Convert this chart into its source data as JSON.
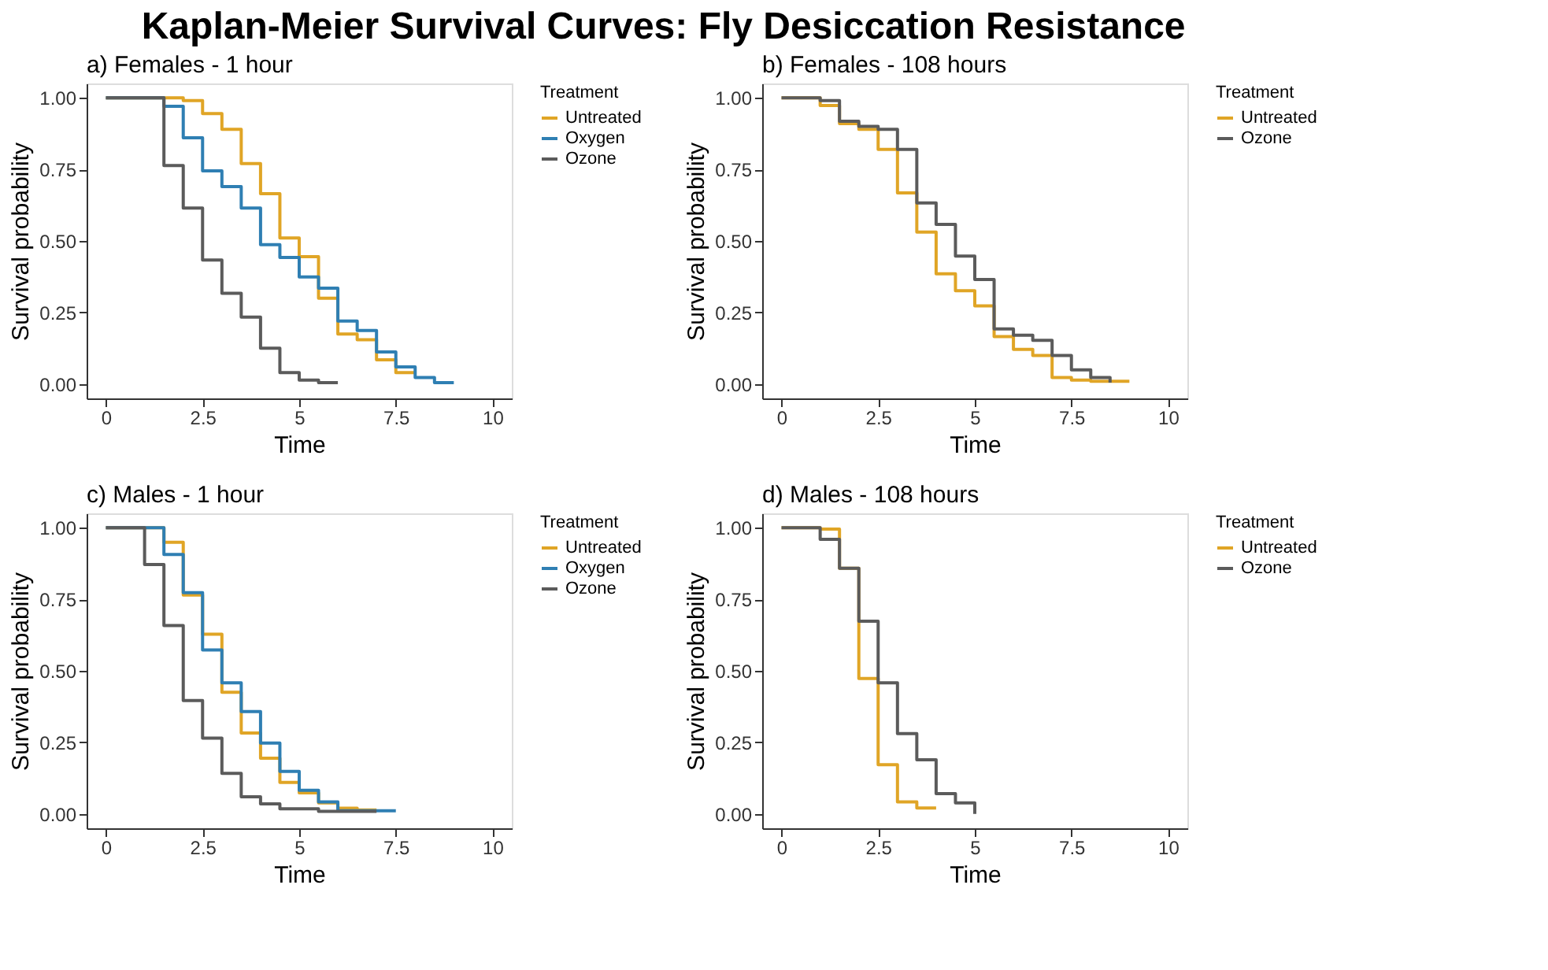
{
  "chart_data": [
    {
      "type": "step",
      "title": "Kaplan-Meier Survival Curves: Fly Desiccation Resistance",
      "subtitle": "a)  Females - 1 hour",
      "xlabel": "Time",
      "ylabel": "Survival probability",
      "legend_title": "Treatment",
      "legend": "right",
      "grid": false,
      "xlim": [
        -0.5,
        10.5
      ],
      "xticks": [
        0,
        2.5,
        5,
        7.5,
        10
      ],
      "ylim": [
        -0.05,
        1.05
      ],
      "yticks": [
        {
          "value": 0,
          "label": "0.00"
        },
        {
          "value": 0.25,
          "label": "0.25"
        },
        {
          "value": 0.5,
          "label": "0.50"
        },
        {
          "value": 0.75,
          "label": "0.75"
        },
        {
          "value": 1,
          "label": "1.00"
        }
      ],
      "series": [
        {
          "name": "Untreated",
          "color": "#e0a526",
          "x": [
            0,
            2,
            2.5,
            3,
            3.5,
            4,
            4.5,
            5,
            5.5,
            6,
            6.5,
            7,
            7.5,
            8
          ],
          "values": [
            1,
            0.99,
            0.945,
            0.89,
            0.77,
            0.665,
            0.51,
            0.445,
            0.3,
            0.175,
            0.155,
            0.085,
            0.04,
            0.04
          ]
        },
        {
          "name": "Oxygen",
          "color": "#2f7fb3",
          "x": [
            0,
            1.5,
            2,
            2.5,
            3,
            3.5,
            4,
            4.5,
            5,
            5.5,
            6,
            6.5,
            7,
            7.5,
            8,
            8.5,
            9
          ],
          "values": [
            1,
            0.97,
            0.86,
            0.745,
            0.69,
            0.615,
            0.487,
            0.442,
            0.374,
            0.335,
            0.22,
            0.187,
            0.112,
            0.06,
            0.023,
            0.005,
            0.005
          ]
        },
        {
          "name": "Ozone",
          "color": "#5b5b5b",
          "x": [
            0,
            1.5,
            2,
            2.5,
            3,
            3.5,
            4,
            4.5,
            5,
            5.5,
            6
          ],
          "values": [
            1,
            0.763,
            0.615,
            0.433,
            0.317,
            0.234,
            0.125,
            0.04,
            0.014,
            0.005,
            0.005
          ]
        }
      ]
    },
    {
      "type": "step",
      "subtitle": "b)  Females - 108 hours",
      "xlabel": "Time",
      "ylabel": "Survival probability",
      "legend_title": "Treatment",
      "legend": "right",
      "grid": false,
      "xlim": [
        -0.5,
        10.5
      ],
      "xticks": [
        0,
        2.5,
        5,
        7.5,
        10
      ],
      "ylim": [
        -0.05,
        1.05
      ],
      "yticks": [
        {
          "value": 0,
          "label": "0.00"
        },
        {
          "value": 0.25,
          "label": "0.25"
        },
        {
          "value": 0.5,
          "label": "0.50"
        },
        {
          "value": 0.75,
          "label": "0.75"
        },
        {
          "value": 1,
          "label": "1.00"
        }
      ],
      "series": [
        {
          "name": "Untreated",
          "color": "#e0a526",
          "x": [
            0,
            1,
            1.5,
            2,
            2.5,
            3,
            3.5,
            4,
            4.5,
            5,
            5.5,
            6,
            6.5,
            7,
            7.5,
            8,
            9
          ],
          "values": [
            1,
            0.973,
            0.91,
            0.89,
            0.82,
            0.668,
            0.531,
            0.385,
            0.326,
            0.273,
            0.166,
            0.121,
            0.1,
            0.023,
            0.014,
            0.01,
            0.01
          ]
        },
        {
          "name": "Ozone",
          "color": "#5b5b5b",
          "x": [
            0,
            1,
            1.5,
            2,
            2.5,
            3,
            3.5,
            4,
            4.5,
            5,
            5.5,
            6,
            6.5,
            7,
            7.5,
            8,
            8.5
          ],
          "values": [
            1,
            0.99,
            0.918,
            0.9,
            0.89,
            0.82,
            0.633,
            0.558,
            0.447,
            0.365,
            0.193,
            0.171,
            0.153,
            0.1,
            0.05,
            0.023,
            0.005
          ]
        }
      ]
    },
    {
      "type": "step",
      "subtitle": "c)  Males - 1 hour",
      "xlabel": "Time",
      "ylabel": "Survival probability",
      "legend_title": "Treatment",
      "legend": "right",
      "grid": false,
      "xlim": [
        -0.5,
        10.5
      ],
      "xticks": [
        0,
        2.5,
        5,
        7.5,
        10
      ],
      "ylim": [
        -0.05,
        1.05
      ],
      "yticks": [
        {
          "value": 0,
          "label": "0.00"
        },
        {
          "value": 0.25,
          "label": "0.25"
        },
        {
          "value": 0.5,
          "label": "0.50"
        },
        {
          "value": 0.75,
          "label": "0.75"
        },
        {
          "value": 1,
          "label": "1.00"
        }
      ],
      "series": [
        {
          "name": "Untreated",
          "color": "#e0a526",
          "x": [
            0,
            1.5,
            2,
            2.5,
            3,
            3.5,
            4,
            4.5,
            5,
            5.5,
            6,
            6.5,
            7
          ],
          "values": [
            1,
            0.949,
            0.765,
            0.628,
            0.425,
            0.283,
            0.195,
            0.11,
            0.074,
            0.039,
            0.02,
            0.014,
            0.014
          ]
        },
        {
          "name": "Oxygen",
          "color": "#2f7fb3",
          "x": [
            0,
            1.5,
            2,
            2.5,
            3,
            3.5,
            4,
            4.5,
            5,
            5.5,
            6,
            7.5
          ],
          "values": [
            1,
            0.906,
            0.773,
            0.573,
            0.458,
            0.358,
            0.248,
            0.149,
            0.083,
            0.042,
            0.011,
            0.011
          ]
        },
        {
          "name": "Ozone",
          "color": "#5b5b5b",
          "x": [
            0,
            1,
            1.5,
            2,
            2.5,
            3,
            3.5,
            4,
            4.5,
            5.5,
            7
          ],
          "values": [
            1,
            0.871,
            0.658,
            0.396,
            0.265,
            0.142,
            0.06,
            0.035,
            0.018,
            0.009,
            0.009
          ]
        }
      ]
    },
    {
      "type": "step",
      "subtitle": "d)  Males - 108 hours",
      "xlabel": "Time",
      "ylabel": "Survival probability",
      "legend_title": "Treatment",
      "legend": "right",
      "grid": false,
      "xlim": [
        -0.5,
        10.5
      ],
      "xticks": [
        0,
        2.5,
        5,
        7.5,
        10
      ],
      "ylim": [
        -0.05,
        1.05
      ],
      "yticks": [
        {
          "value": 0,
          "label": "0.00"
        },
        {
          "value": 0.25,
          "label": "0.25"
        },
        {
          "value": 0.5,
          "label": "0.50"
        },
        {
          "value": 0.75,
          "label": "0.75"
        },
        {
          "value": 1,
          "label": "1.00"
        }
      ],
      "series": [
        {
          "name": "Untreated",
          "color": "#e0a526",
          "x": [
            0,
            1,
            1.5,
            2,
            2.5,
            3,
            3.5,
            4
          ],
          "values": [
            1,
            0.995,
            0.858,
            0.473,
            0.172,
            0.042,
            0.021,
            0.021
          ]
        },
        {
          "name": "Ozone",
          "color": "#5b5b5b",
          "x": [
            0,
            1,
            1.5,
            2,
            2.5,
            3,
            3.5,
            4,
            4.5,
            5,
            5
          ],
          "values": [
            1,
            0.959,
            0.858,
            0.673,
            0.458,
            0.281,
            0.189,
            0.071,
            0.039,
            0.039,
            0
          ]
        }
      ]
    }
  ]
}
